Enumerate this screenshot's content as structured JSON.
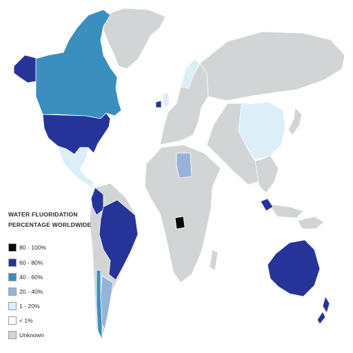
{
  "legend": {
    "title_line1": "WATER FLUORIDATION",
    "title_line2": "PERCENTAGE WORLDWIDE",
    "items": [
      {
        "label": "80 - 100%",
        "color": "#050505"
      },
      {
        "label": "60 - 80%",
        "color": "#26349a"
      },
      {
        "label": "40 - 60%",
        "color": "#3a8fbe"
      },
      {
        "label": "20 - 40%",
        "color": "#98b3d8"
      },
      {
        "label": "1 - 20%",
        "color": "#dceef8"
      },
      {
        "label": "< 1%",
        "color": "#ffffff"
      },
      {
        "label": "Unknown",
        "color": "#d2d5d6"
      }
    ]
  },
  "regions": {
    "canada": "40 - 60%",
    "united_states": "60 - 80%",
    "alaska": "60 - 80%",
    "mexico": "1 - 20%",
    "brazil": "60 - 80%",
    "colombia": "60 - 80%",
    "chile": "40 - 60%",
    "argentina": "20 - 40%",
    "ireland": "60 - 80%",
    "uk": "1 - 20%",
    "spain": "1 - 20%",
    "libya": "20 - 40%",
    "china": "1 - 20%",
    "malaysia": "60 - 80%",
    "australia": "60 - 80%",
    "new_zealand": "60 - 80%",
    "gabon": "80 - 100%"
  }
}
